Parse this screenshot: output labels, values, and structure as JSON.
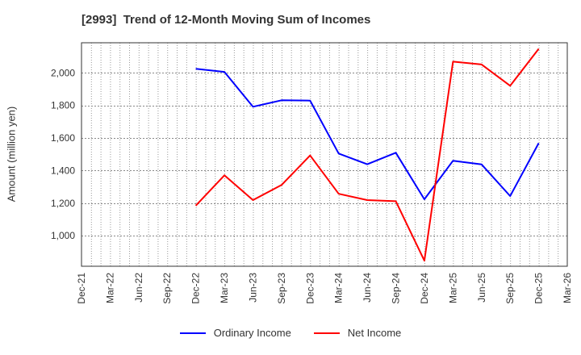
{
  "chart_data": {
    "type": "line",
    "title": "[2993]  Trend of 12-Month Moving Sum of Incomes",
    "xlabel": "",
    "ylabel": "Amount (million yen)",
    "x_ticks": [
      "Dec-21",
      "Mar-22",
      "Jun-22",
      "Sep-22",
      "Dec-22",
      "Mar-23",
      "Jun-23",
      "Sep-23",
      "Dec-23",
      "Mar-24",
      "Jun-24",
      "Sep-24",
      "Dec-24",
      "Mar-25",
      "Jun-25",
      "Sep-25",
      "Dec-25",
      "Mar-26"
    ],
    "y_ticks": [
      1000,
      1200,
      1400,
      1600,
      1800,
      2000
    ],
    "y_tick_labels": [
      "1,000",
      "1,200",
      "1,400",
      "1,600",
      "1,800",
      "2,000"
    ],
    "ylim": [
      813,
      2185
    ],
    "grid": true,
    "legend_position": "bottom",
    "categories": [
      "Dec-22",
      "Mar-23",
      "Jun-23",
      "Sep-23",
      "Dec-23",
      "Mar-24",
      "Jun-24",
      "Sep-24",
      "Dec-24",
      "Mar-25",
      "Jun-25",
      "Sep-25",
      "Dec-25"
    ],
    "series": [
      {
        "name": "Ordinary Income",
        "color": "#0000ff",
        "values": [
          2025,
          2006,
          1792,
          1832,
          1830,
          1505,
          1439,
          1510,
          1224,
          1461,
          1438,
          1244,
          1569
        ]
      },
      {
        "name": "Net Income",
        "color": "#ff0000",
        "values": [
          1185,
          1371,
          1219,
          1312,
          1493,
          1258,
          1219,
          1212,
          847,
          2069,
          2052,
          1921,
          2148
        ]
      }
    ]
  },
  "legend": {
    "items": [
      {
        "label": "Ordinary Income",
        "color": "#0000ff"
      },
      {
        "label": "Net Income",
        "color": "#ff0000"
      }
    ]
  }
}
